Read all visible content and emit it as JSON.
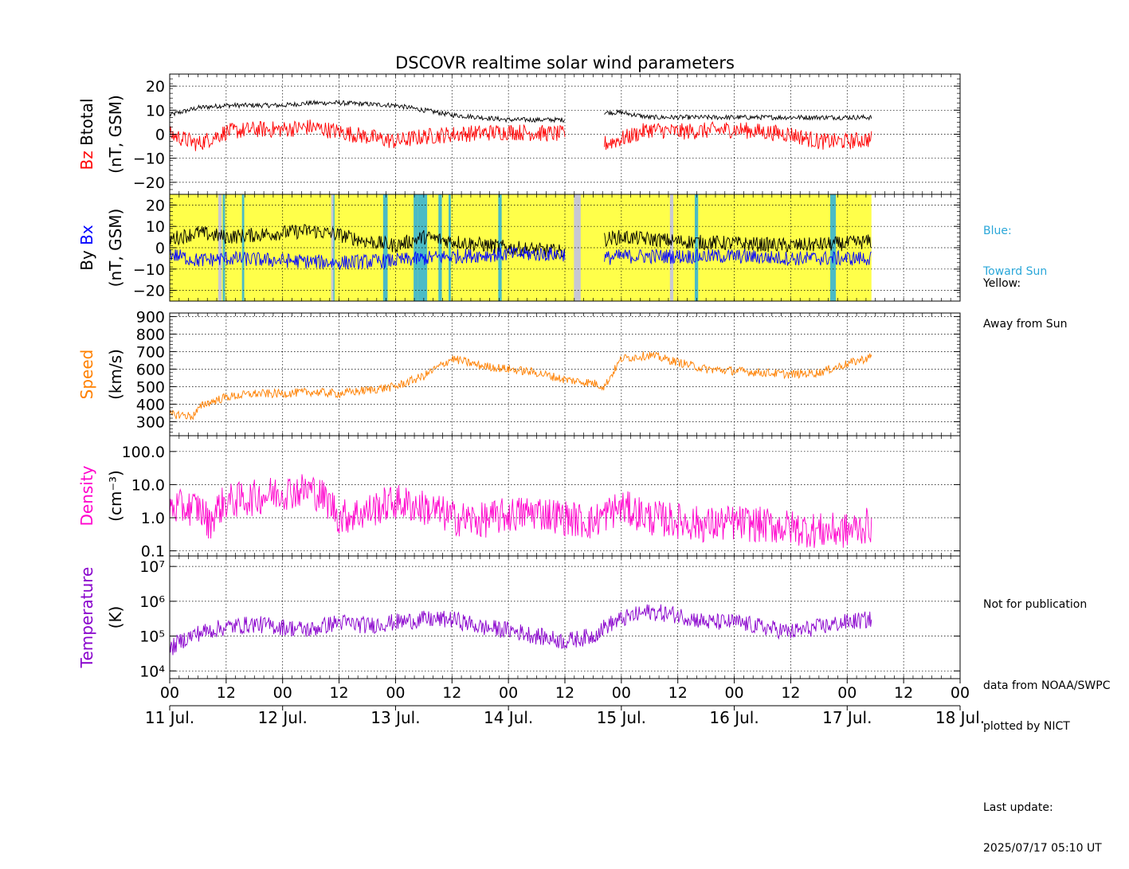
{
  "title": "DSCOVR realtime solar wind parameters",
  "legend_notes": {
    "blue_label": "Blue:",
    "blue_desc": "Toward Sun",
    "yellow_label": "Yellow:",
    "yellow_desc": "Away from Sun"
  },
  "footer_notes": {
    "not_for_publication": "Not for publication",
    "data_source": "data from NOAA/SWPC",
    "plotted_by": "plotted by NICT",
    "last_update_label": "Last update:",
    "last_update_value": "2025/07/17 05:10 UT"
  },
  "colors": {
    "btotal": "#000000",
    "bz": "#ff0000",
    "by": "#000000",
    "bx": "#0000ff",
    "speed": "#ff8000",
    "density": "#ff00cc",
    "temperature": "#8800cc",
    "sector_away": "#ffff4a",
    "sector_toward": "#37b4d4",
    "sector_gap": "#c8c8d2"
  },
  "chart_data": {
    "type": "line",
    "x_axis": {
      "range_days": [
        0,
        7
      ],
      "tick_labels": [
        "00",
        "12",
        "00",
        "12",
        "00",
        "12",
        "00",
        "12",
        "00",
        "12",
        "00",
        "12",
        "00",
        "12",
        "00"
      ],
      "date_labels": [
        "11 Jul.",
        "12 Jul.",
        "13 Jul.",
        "14 Jul.",
        "15 Jul.",
        "16 Jul.",
        "17 Jul.",
        "18 Jul."
      ],
      "data_end_day": 6.215
    },
    "panels": [
      {
        "id": "mag",
        "ylabel_parts": [
          "Bz",
          "Btotal"
        ],
        "ylabel_unit": "(nT, GSM)",
        "ylim": [
          -25,
          25
        ],
        "ticks": [
          20,
          10,
          0,
          -10,
          -20
        ],
        "tick_labels": [
          "20",
          "10",
          "0",
          "−10",
          "−20"
        ],
        "series": [
          {
            "name": "Btotal",
            "x": [
              0.0,
              0.25,
              0.5,
              1.0,
              1.25,
              1.5,
              2.0,
              2.25,
              2.5,
              3.0,
              3.5,
              3.6,
              3.85,
              4.0,
              4.25,
              4.5,
              5.0,
              5.5,
              6.0,
              6.215
            ],
            "y": [
              8,
              11,
              12,
              12,
              13,
              13,
              12,
              10,
              8,
              6,
              6,
              null,
              9,
              9,
              7,
              7,
              7,
              7,
              7,
              7
            ]
          },
          {
            "name": "Bz",
            "x": [
              0.0,
              0.25,
              0.5,
              0.75,
              1.0,
              1.25,
              1.5,
              2.0,
              2.25,
              2.5,
              3.0,
              3.5,
              3.6,
              3.85,
              4.0,
              4.25,
              4.5,
              5.0,
              5.5,
              5.75,
              6.0,
              6.215
            ],
            "y": [
              0,
              -4,
              1,
              2,
              2,
              3,
              1,
              -3,
              -1,
              0,
              1,
              0,
              null,
              -4,
              -2,
              2,
              1,
              2,
              0,
              -3,
              -3,
              -2
            ]
          }
        ]
      },
      {
        "id": "byx",
        "ylabel_parts": [
          "By",
          "Bx"
        ],
        "ylabel_unit": "(nT, GSM)",
        "ylim": [
          -25,
          25
        ],
        "ticks": [
          20,
          10,
          0,
          -10,
          -20
        ],
        "tick_labels": [
          "20",
          "10",
          "0",
          "−10",
          "−20"
        ],
        "series": [
          {
            "name": "By",
            "x": [
              0.0,
              0.25,
              0.5,
              1.0,
              1.25,
              1.5,
              1.75,
              2.0,
              2.25,
              2.5,
              3.0,
              3.5,
              3.6,
              3.85,
              4.0,
              4.5,
              5.0,
              5.5,
              6.0,
              6.215
            ],
            "y": [
              4,
              7,
              5,
              7,
              8,
              6,
              3,
              1,
              5,
              3,
              0,
              -2,
              null,
              4,
              5,
              3,
              2,
              1,
              2,
              3
            ]
          },
          {
            "name": "Bx",
            "x": [
              0.0,
              0.25,
              0.5,
              1.0,
              1.5,
              2.0,
              2.5,
              3.0,
              3.5,
              3.6,
              3.85,
              4.0,
              4.5,
              5.0,
              5.5,
              6.0,
              6.215
            ],
            "y": [
              -3,
              -6,
              -5,
              -6,
              -7,
              -6,
              -4,
              -3,
              -3,
              null,
              -5,
              -4,
              -4,
              -4,
              -5,
              -5,
              -5
            ]
          }
        ],
        "sector_background": {
          "away_range_days": [
            0,
            6.215
          ],
          "toward_bands_days": [
            [
              0.47,
              0.49
            ],
            [
              0.64,
              0.66
            ],
            [
              1.44,
              1.46
            ],
            [
              1.89,
              1.93
            ],
            [
              2.16,
              2.2
            ],
            [
              2.2,
              2.28
            ],
            [
              2.38,
              2.41
            ],
            [
              2.47,
              2.49
            ],
            [
              2.91,
              2.94
            ],
            [
              4.65,
              4.68
            ],
            [
              5.85,
              5.9
            ]
          ],
          "gap_bands_days": [
            [
              0.43,
              0.46
            ],
            [
              1.43,
              1.45
            ],
            [
              3.58,
              3.64
            ],
            [
              4.43,
              4.46
            ]
          ]
        }
      },
      {
        "id": "speed",
        "ylabel_parts": [
          "Speed"
        ],
        "ylabel_unit": "(km/s)",
        "ylim": [
          220,
          920
        ],
        "ticks": [
          900,
          800,
          700,
          600,
          500,
          400,
          300
        ],
        "tick_labels": [
          "900",
          "800",
          "700",
          "600",
          "500",
          "400",
          "300"
        ],
        "series": [
          {
            "name": "Speed",
            "x": [
              0.0,
              0.1,
              0.2,
              0.3,
              0.5,
              0.75,
              1.0,
              1.25,
              1.5,
              1.75,
              2.0,
              2.25,
              2.35,
              2.5,
              2.75,
              3.0,
              3.25,
              3.5,
              3.75,
              3.85,
              4.0,
              4.25,
              4.5,
              4.75,
              5.0,
              5.25,
              5.5,
              5.75,
              6.0,
              6.215
            ],
            "y": [
              340,
              340,
              330,
              400,
              440,
              460,
              460,
              470,
              460,
              480,
              500,
              560,
              600,
              660,
              620,
              600,
              580,
              540,
              520,
              500,
              660,
              680,
              640,
              600,
              590,
              580,
              570,
              580,
              630,
              670
            ]
          }
        ]
      },
      {
        "id": "density",
        "ylabel_parts": [
          "Density"
        ],
        "ylabel_unit": "(cm⁻³)",
        "scale": "log",
        "ylim": [
          0.07,
          300
        ],
        "ticks": [
          100,
          10,
          1,
          0.1
        ],
        "tick_labels": [
          "100.0",
          "10.0",
          "1.0",
          "0.1"
        ],
        "series": [
          {
            "name": "Density",
            "x": [
              0.0,
              0.25,
              0.35,
              0.5,
              0.75,
              1.0,
              1.25,
              1.4,
              1.5,
              1.75,
              2.0,
              2.25,
              2.5,
              2.75,
              3.0,
              3.25,
              3.5,
              3.75,
              4.0,
              4.25,
              4.5,
              4.75,
              5.0,
              5.25,
              5.5,
              5.75,
              6.0,
              6.215
            ],
            "y": [
              2,
              2,
              0.6,
              3,
              4,
              6,
              7,
              3,
              1,
              1.5,
              3,
              2,
              1,
              0.8,
              1.2,
              1.5,
              1,
              0.7,
              2,
              1,
              0.8,
              0.6,
              0.7,
              0.6,
              0.5,
              0.4,
              0.4,
              0.6
            ]
          }
        ]
      },
      {
        "id": "temperature",
        "ylabel_parts": [
          "Temperature"
        ],
        "ylabel_unit": "(K)",
        "scale": "log",
        "ylim": [
          6000,
          20000000
        ],
        "ticks": [
          10000000,
          1000000,
          100000,
          10000
        ],
        "tick_labels": [
          "10⁷",
          "10⁶",
          "10⁵",
          "10⁴"
        ],
        "series": [
          {
            "name": "Temperature",
            "x": [
              0.0,
              0.25,
              0.5,
              0.75,
              1.0,
              1.25,
              1.5,
              1.75,
              2.0,
              2.25,
              2.5,
              2.75,
              3.0,
              3.25,
              3.5,
              3.75,
              4.0,
              4.25,
              4.5,
              4.75,
              5.0,
              5.25,
              5.5,
              5.75,
              6.0,
              6.215
            ],
            "y": [
              40000,
              120000,
              180000,
              220000,
              180000,
              150000,
              250000,
              200000,
              250000,
              300000,
              300000,
              180000,
              150000,
              100000,
              70000,
              100000,
              300000,
              500000,
              400000,
              250000,
              250000,
              180000,
              130000,
              180000,
              250000,
              300000
            ]
          }
        ]
      }
    ]
  }
}
